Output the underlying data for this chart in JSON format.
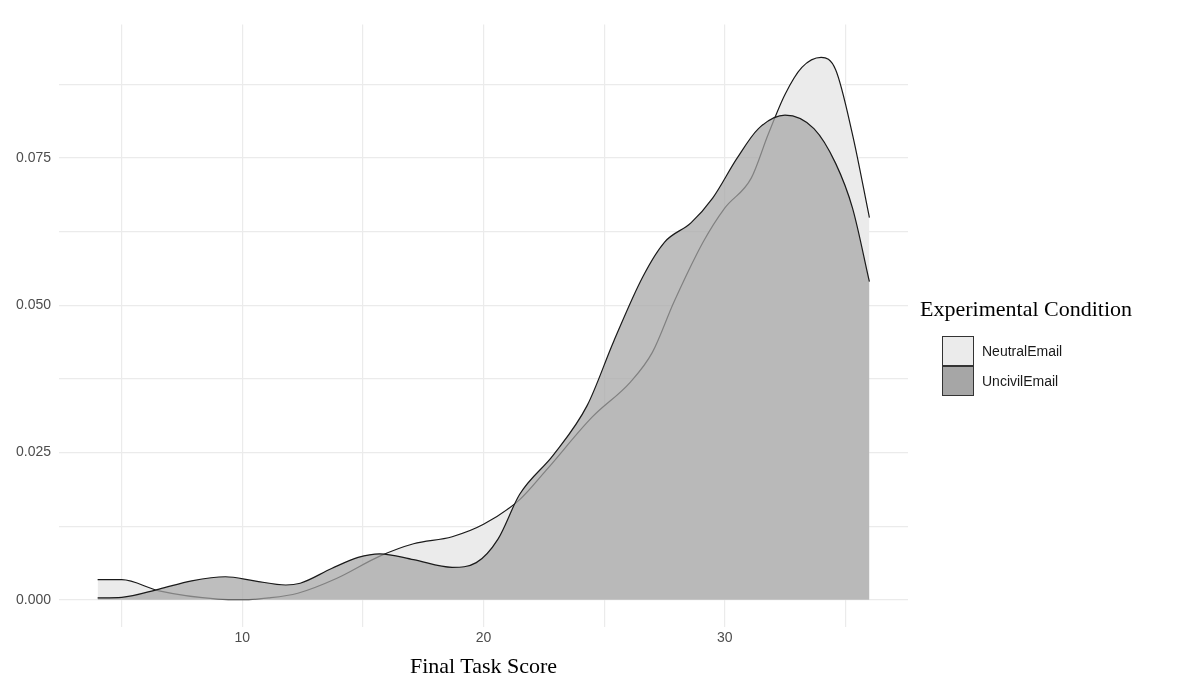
{
  "chart_data": {
    "type": "area",
    "xlabel": "Final Task Score",
    "legend_title": "Experimental Condition",
    "legend": "right",
    "grid": true,
    "xlim": [
      2.4,
      37.6
    ],
    "ylim": [
      -0.0046,
      0.0977
    ],
    "xticks": [
      {
        "value": 5,
        "label": null
      },
      10,
      {
        "value": 15,
        "label": null
      },
      20,
      {
        "value": 25,
        "label": null
      },
      30,
      {
        "value": 35,
        "label": null
      }
    ],
    "yticks": [
      {
        "value": 0,
        "label": "0.000"
      },
      {
        "value": 0.0125,
        "label": null
      },
      {
        "value": 0.025,
        "label": "0.025"
      },
      {
        "value": 0.0375,
        "label": null
      },
      {
        "value": 0.05,
        "label": "0.050"
      },
      {
        "value": 0.0625,
        "label": null
      },
      {
        "value": 0.075,
        "label": "0.075"
      },
      {
        "value": 0.0875,
        "label": null
      }
    ],
    "series": [
      {
        "name": "NeutralEmail",
        "color": "#ebebeb",
        "x": [
          4,
          5,
          6.55,
          9,
          10,
          11.1,
          12.3,
          13.9,
          15.7,
          17.1,
          18.7,
          20,
          21.5,
          22.6,
          24.5,
          26.1,
          27,
          27.9,
          29.1,
          30,
          31.1,
          31.8,
          32.5,
          33.2,
          34,
          34.6,
          35.3,
          36
        ],
        "values": [
          0.0034,
          0.0034,
          0.0015,
          0.0001,
          0,
          0.0003,
          0.0011,
          0.0036,
          0.0074,
          0.0095,
          0.0107,
          0.0128,
          0.017,
          0.022,
          0.031,
          0.037,
          0.042,
          0.0506,
          0.0607,
          0.0665,
          0.0716,
          0.079,
          0.0858,
          0.0904,
          0.0921,
          0.09,
          0.079,
          0.0649
        ]
      },
      {
        "name": "UncivilEmail",
        "color": "#a6a6a6",
        "x": [
          4,
          5,
          6.55,
          7.9,
          9.3,
          10.5,
          11.8,
          12.4,
          13.7,
          14.8,
          15.7,
          17.1,
          18.7,
          19.7,
          20.6,
          21.5,
          22.9,
          24.3,
          25.4,
          26.6,
          27.5,
          28.6,
          29.5,
          30.5,
          31.4,
          32.5,
          33.7,
          34.6,
          35.3,
          36
        ],
        "values": [
          0.0003,
          0.0004,
          0.0018,
          0.0032,
          0.0039,
          0.0032,
          0.0025,
          0.0028,
          0.0053,
          0.0072,
          0.0078,
          0.0068,
          0.0055,
          0.0063,
          0.0103,
          0.0179,
          0.0246,
          0.033,
          0.0439,
          0.0548,
          0.0607,
          0.064,
          0.0682,
          0.0749,
          0.08,
          0.0823,
          0.08,
          0.0741,
          0.0665,
          0.054
        ]
      }
    ]
  }
}
